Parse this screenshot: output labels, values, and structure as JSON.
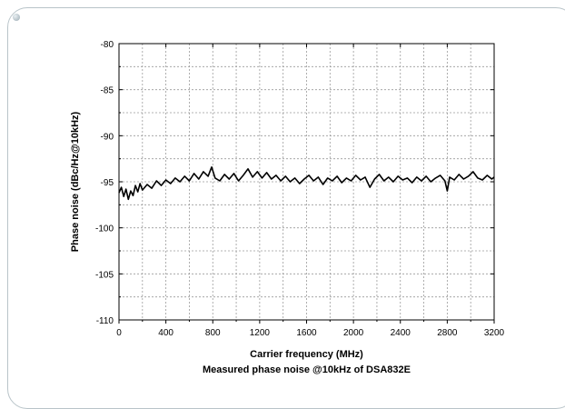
{
  "chart_data": {
    "type": "line",
    "xlabel": "Carrier frequency (MHz)",
    "ylabel": "Phase noise (dBc/Hz@10kHz)",
    "caption": "Measured phase noise @10kHz of DSA832E",
    "xlim": [
      0,
      3200
    ],
    "ylim": [
      -110,
      -80
    ],
    "x_ticks": [
      0,
      400,
      800,
      1200,
      1600,
      2000,
      2400,
      2800,
      3200
    ],
    "y_ticks": [
      -80,
      -85,
      -90,
      -95,
      -100,
      -105,
      -110
    ],
    "grid": true,
    "series": [
      {
        "color": "#000000",
        "x": [
          0,
          20,
          40,
          60,
          80,
          100,
          120,
          140,
          160,
          180,
          200,
          240,
          280,
          320,
          360,
          400,
          440,
          480,
          520,
          560,
          600,
          640,
          680,
          720,
          760,
          790,
          820,
          860,
          900,
          940,
          980,
          1020,
          1060,
          1100,
          1140,
          1180,
          1220,
          1260,
          1300,
          1340,
          1380,
          1420,
          1460,
          1500,
          1540,
          1580,
          1620,
          1660,
          1700,
          1740,
          1780,
          1820,
          1860,
          1900,
          1940,
          1980,
          2020,
          2060,
          2100,
          2140,
          2180,
          2220,
          2260,
          2300,
          2340,
          2380,
          2420,
          2460,
          2500,
          2540,
          2580,
          2620,
          2660,
          2700,
          2740,
          2780,
          2800,
          2820,
          2860,
          2900,
          2940,
          2980,
          3020,
          3060,
          3100,
          3140,
          3180,
          3200
        ],
        "values": [
          -96.2,
          -95.6,
          -96.6,
          -95.8,
          -96.9,
          -96.0,
          -96.5,
          -95.4,
          -96.1,
          -95.2,
          -95.9,
          -95.3,
          -95.7,
          -94.9,
          -95.4,
          -94.8,
          -95.2,
          -94.6,
          -95.0,
          -94.4,
          -94.9,
          -94.1,
          -94.7,
          -93.9,
          -94.4,
          -93.4,
          -94.6,
          -94.9,
          -94.2,
          -94.7,
          -94.1,
          -94.9,
          -94.3,
          -93.6,
          -94.5,
          -93.9,
          -94.6,
          -94.0,
          -94.7,
          -94.3,
          -94.9,
          -94.4,
          -95.0,
          -94.6,
          -95.2,
          -94.7,
          -94.3,
          -94.9,
          -94.5,
          -95.3,
          -94.6,
          -94.9,
          -94.4,
          -95.1,
          -94.6,
          -94.9,
          -94.3,
          -94.8,
          -94.5,
          -95.6,
          -94.7,
          -94.2,
          -94.9,
          -94.5,
          -95.0,
          -94.4,
          -94.8,
          -94.6,
          -95.1,
          -94.5,
          -94.9,
          -94.4,
          -95.0,
          -94.6,
          -94.3,
          -94.9,
          -96.0,
          -94.5,
          -94.8,
          -94.2,
          -94.7,
          -94.4,
          -93.9,
          -94.6,
          -94.8,
          -94.3,
          -94.7,
          -94.5
        ]
      }
    ]
  }
}
